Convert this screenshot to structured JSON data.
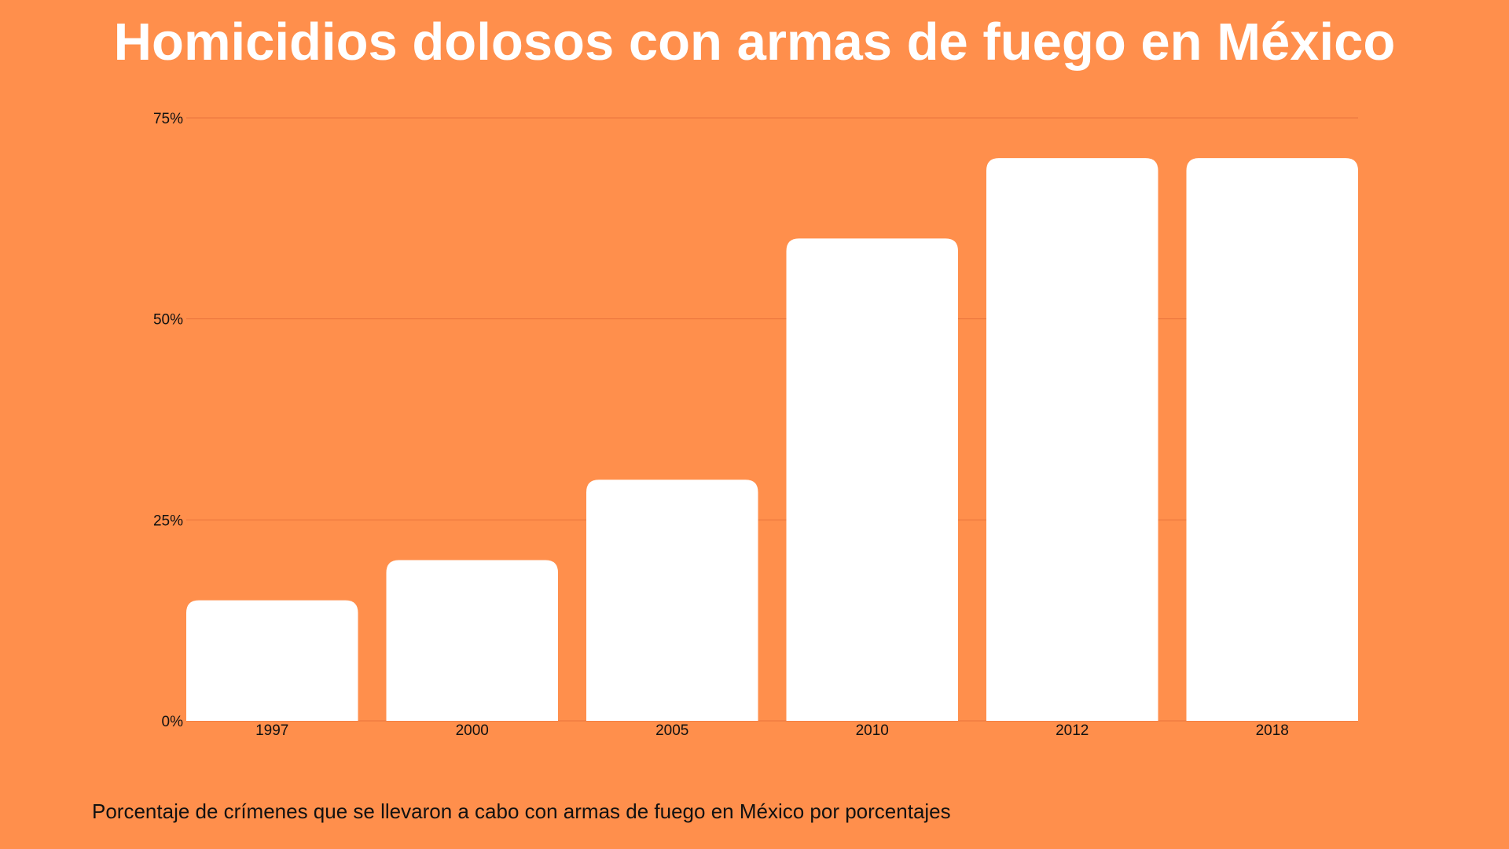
{
  "colors": {
    "background": "#FF8F4C",
    "bar": "#FFFFFF",
    "gridline": "#E8733B",
    "title": "#FFFFFF",
    "text": "#111111"
  },
  "caption": "Porcentaje de crímenes que se llevaron a cabo con armas de fuego en México por porcentajes",
  "chart_data": {
    "type": "bar",
    "title": "Homicidios dolosos con armas de fuego en México",
    "xlabel": "",
    "ylabel": "",
    "categories": [
      "1997",
      "2000",
      "2005",
      "2010",
      "2012",
      "2018"
    ],
    "values": [
      15,
      20,
      30,
      60,
      70,
      70
    ],
    "ylim": [
      0,
      75
    ],
    "yticks": [
      0,
      25,
      50,
      75
    ],
    "ytick_labels": [
      "0%",
      "25%",
      "50%",
      "75%"
    ],
    "grid": true,
    "legend": "none"
  }
}
